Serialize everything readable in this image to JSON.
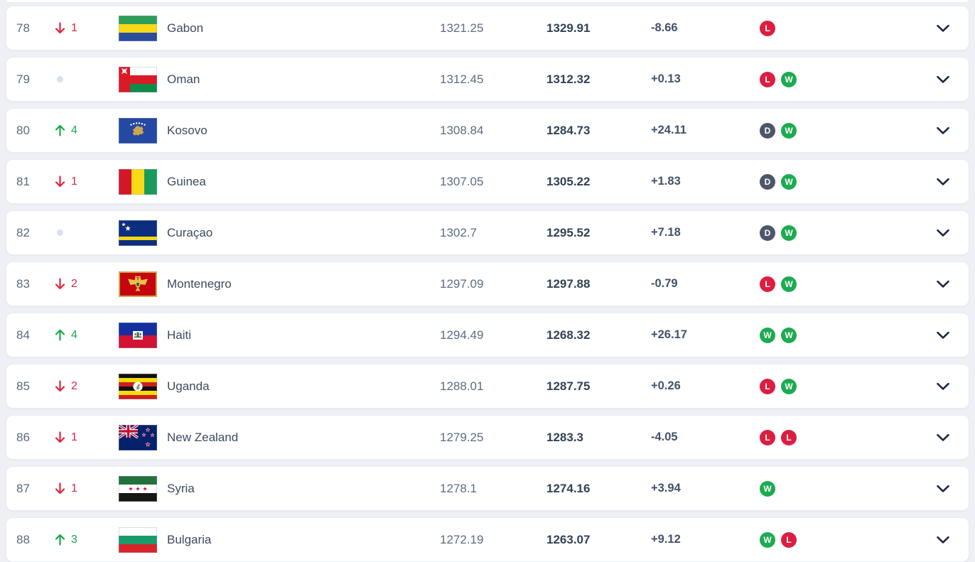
{
  "page": {
    "background": "#eef0f6"
  },
  "table": {
    "rows": [
      {
        "rank": "78",
        "movement": {
          "dir": "down",
          "value": "1"
        },
        "flag": "gabon",
        "country": "Gabon",
        "points": "1321.25",
        "previous_points": "1329.91",
        "change": "-8.66",
        "recent_results": [
          "L"
        ]
      },
      {
        "rank": "79",
        "movement": {
          "dir": "none",
          "value": ""
        },
        "flag": "oman",
        "country": "Oman",
        "points": "1312.45",
        "previous_points": "1312.32",
        "change": "+0.13",
        "recent_results": [
          "L",
          "W"
        ]
      },
      {
        "rank": "80",
        "movement": {
          "dir": "up",
          "value": "4"
        },
        "flag": "kosovo",
        "country": "Kosovo",
        "points": "1308.84",
        "previous_points": "1284.73",
        "change": "+24.11",
        "recent_results": [
          "D",
          "W"
        ]
      },
      {
        "rank": "81",
        "movement": {
          "dir": "down",
          "value": "1"
        },
        "flag": "guinea",
        "country": "Guinea",
        "points": "1307.05",
        "previous_points": "1305.22",
        "change": "+1.83",
        "recent_results": [
          "D",
          "W"
        ]
      },
      {
        "rank": "82",
        "movement": {
          "dir": "none",
          "value": ""
        },
        "flag": "curacao",
        "country": "Curaçao",
        "points": "1302.7",
        "previous_points": "1295.52",
        "change": "+7.18",
        "recent_results": [
          "D",
          "W"
        ]
      },
      {
        "rank": "83",
        "movement": {
          "dir": "down",
          "value": "2"
        },
        "flag": "montenegro",
        "country": "Montenegro",
        "points": "1297.09",
        "previous_points": "1297.88",
        "change": "-0.79",
        "recent_results": [
          "L",
          "W"
        ]
      },
      {
        "rank": "84",
        "movement": {
          "dir": "up",
          "value": "4"
        },
        "flag": "haiti",
        "country": "Haiti",
        "points": "1294.49",
        "previous_points": "1268.32",
        "change": "+26.17",
        "recent_results": [
          "W",
          "W"
        ]
      },
      {
        "rank": "85",
        "movement": {
          "dir": "down",
          "value": "2"
        },
        "flag": "uganda",
        "country": "Uganda",
        "points": "1288.01",
        "previous_points": "1287.75",
        "change": "+0.26",
        "recent_results": [
          "L",
          "W"
        ]
      },
      {
        "rank": "86",
        "movement": {
          "dir": "down",
          "value": "1"
        },
        "flag": "new-zealand",
        "country": "New Zealand",
        "points": "1279.25",
        "previous_points": "1283.3",
        "change": "-4.05",
        "recent_results": [
          "L",
          "L"
        ]
      },
      {
        "rank": "87",
        "movement": {
          "dir": "down",
          "value": "1"
        },
        "flag": "syria",
        "country": "Syria",
        "points": "1278.1",
        "previous_points": "1274.16",
        "change": "+3.94",
        "recent_results": [
          "W"
        ]
      },
      {
        "rank": "88",
        "movement": {
          "dir": "up",
          "value": "3"
        },
        "flag": "bulgaria",
        "country": "Bulgaria",
        "points": "1272.19",
        "previous_points": "1263.07",
        "change": "+9.12",
        "recent_results": [
          "W",
          "L"
        ]
      }
    ]
  },
  "badges": {
    "W": {
      "label": "W",
      "color": "#1cab50"
    },
    "L": {
      "label": "L",
      "color": "#dc1e41"
    },
    "D": {
      "label": "D",
      "color": "#4d5668"
    }
  },
  "movement": {
    "up_color": "#17a948",
    "down_color": "#e02440",
    "none_dot_color": "#dbe1ec"
  },
  "icons": {
    "up": "arrow-up-icon",
    "down": "arrow-down-icon",
    "none": "no-change-dot-icon",
    "expand": "chevron-down-icon"
  }
}
